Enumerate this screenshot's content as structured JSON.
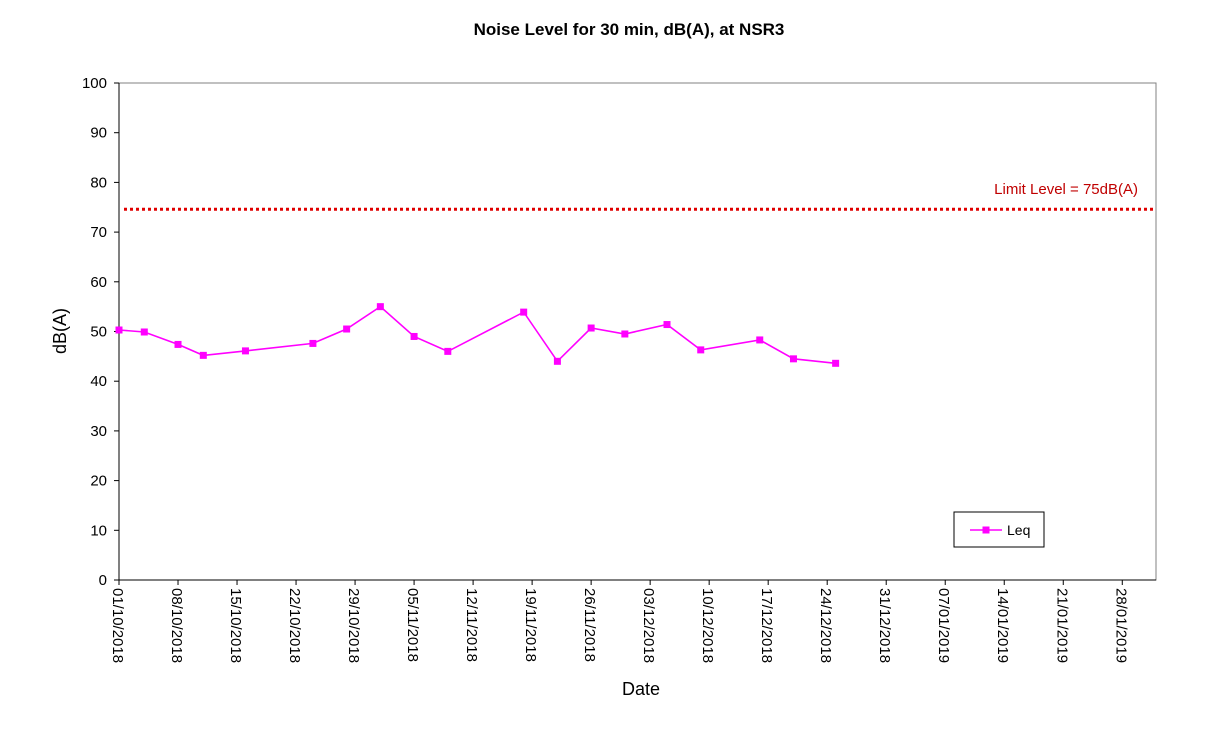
{
  "chart_data": {
    "type": "line",
    "title": "Noise Level for 30 min, dB(A), at NSR3",
    "xlabel": "Date",
    "ylabel": "dB(A)",
    "ylim": [
      0,
      100
    ],
    "yticks": [
      0,
      10,
      20,
      30,
      40,
      50,
      60,
      70,
      80,
      90,
      100
    ],
    "xlim": [
      "2018-10-01",
      "2019-02-01"
    ],
    "xtick_labels": [
      "01/10/2018",
      "08/10/2018",
      "15/10/2018",
      "22/10/2018",
      "29/10/2018",
      "05/11/2018",
      "12/11/2018",
      "19/11/2018",
      "26/11/2018",
      "03/12/2018",
      "10/12/2018",
      "17/12/2018",
      "24/12/2018",
      "31/12/2018",
      "07/01/2019",
      "14/01/2019",
      "21/01/2019",
      "28/01/2019"
    ],
    "grid": false,
    "legend": {
      "position": "bottom-right",
      "entries": [
        "Leq"
      ]
    },
    "series": [
      {
        "name": "Leq",
        "color": "#ff00ff",
        "marker": "square",
        "x": [
          "2018-10-01",
          "2018-10-04",
          "2018-10-08",
          "2018-10-11",
          "2018-10-16",
          "2018-10-24",
          "2018-10-28",
          "2018-11-01",
          "2018-11-05",
          "2018-11-09",
          "2018-11-18",
          "2018-11-22",
          "2018-11-26",
          "2018-11-30",
          "2018-12-05",
          "2018-12-09",
          "2018-12-16",
          "2018-12-20",
          "2018-12-25",
          "2018-12-29",
          "2019-01-03",
          "2019-01-08",
          "2019-01-12",
          "2019-01-16",
          "2019-01-22",
          "2019-01-26",
          "2019-01-31"
        ],
        "values": [
          50.3,
          49.9,
          47.4,
          45.2,
          46.1,
          47.6,
          50.5,
          55.0,
          49.0,
          46.0,
          53.9,
          44.0,
          50.7,
          49.5,
          51.4,
          46.3,
          48.3,
          44.5,
          43.6,
          null,
          null,
          null,
          null,
          null,
          null,
          null,
          null
        ]
      }
    ],
    "reference_lines": [
      {
        "value": 75,
        "label": "Limit Level = 75dB(A)",
        "color": "#e00000",
        "style": "dotted"
      }
    ]
  }
}
